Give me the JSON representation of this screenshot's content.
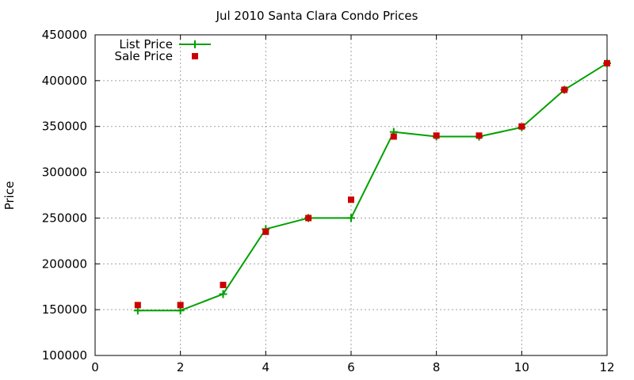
{
  "chart_data": {
    "type": "line",
    "title": "Jul 2010 Santa Clara Condo Prices",
    "xlabel": "",
    "ylabel": "Price",
    "xlim": [
      0,
      12
    ],
    "ylim": [
      100000,
      450000
    ],
    "x_ticks": [
      0,
      2,
      4,
      6,
      8,
      10,
      12
    ],
    "y_ticks": [
      100000,
      150000,
      200000,
      250000,
      300000,
      350000,
      400000,
      450000
    ],
    "grid": true,
    "legend_position": "top-left",
    "series": [
      {
        "name": "List Price",
        "style": "line-with-plus-markers",
        "color": "#00a000",
        "x": [
          1,
          2,
          3,
          4,
          5,
          6,
          7,
          8,
          9,
          10,
          11,
          12
        ],
        "y": [
          149000,
          149000,
          167000,
          238000,
          250000,
          250000,
          344000,
          339000,
          339000,
          349000,
          390000,
          419000
        ]
      },
      {
        "name": "Sale Price",
        "style": "square-points",
        "color": "#cc0000",
        "x": [
          1,
          2,
          3,
          4,
          5,
          6,
          7,
          8,
          9,
          10,
          11,
          12
        ],
        "y": [
          155000,
          155000,
          177000,
          235000,
          250000,
          270000,
          339000,
          340000,
          340000,
          350000,
          390000,
          419000
        ]
      }
    ]
  }
}
